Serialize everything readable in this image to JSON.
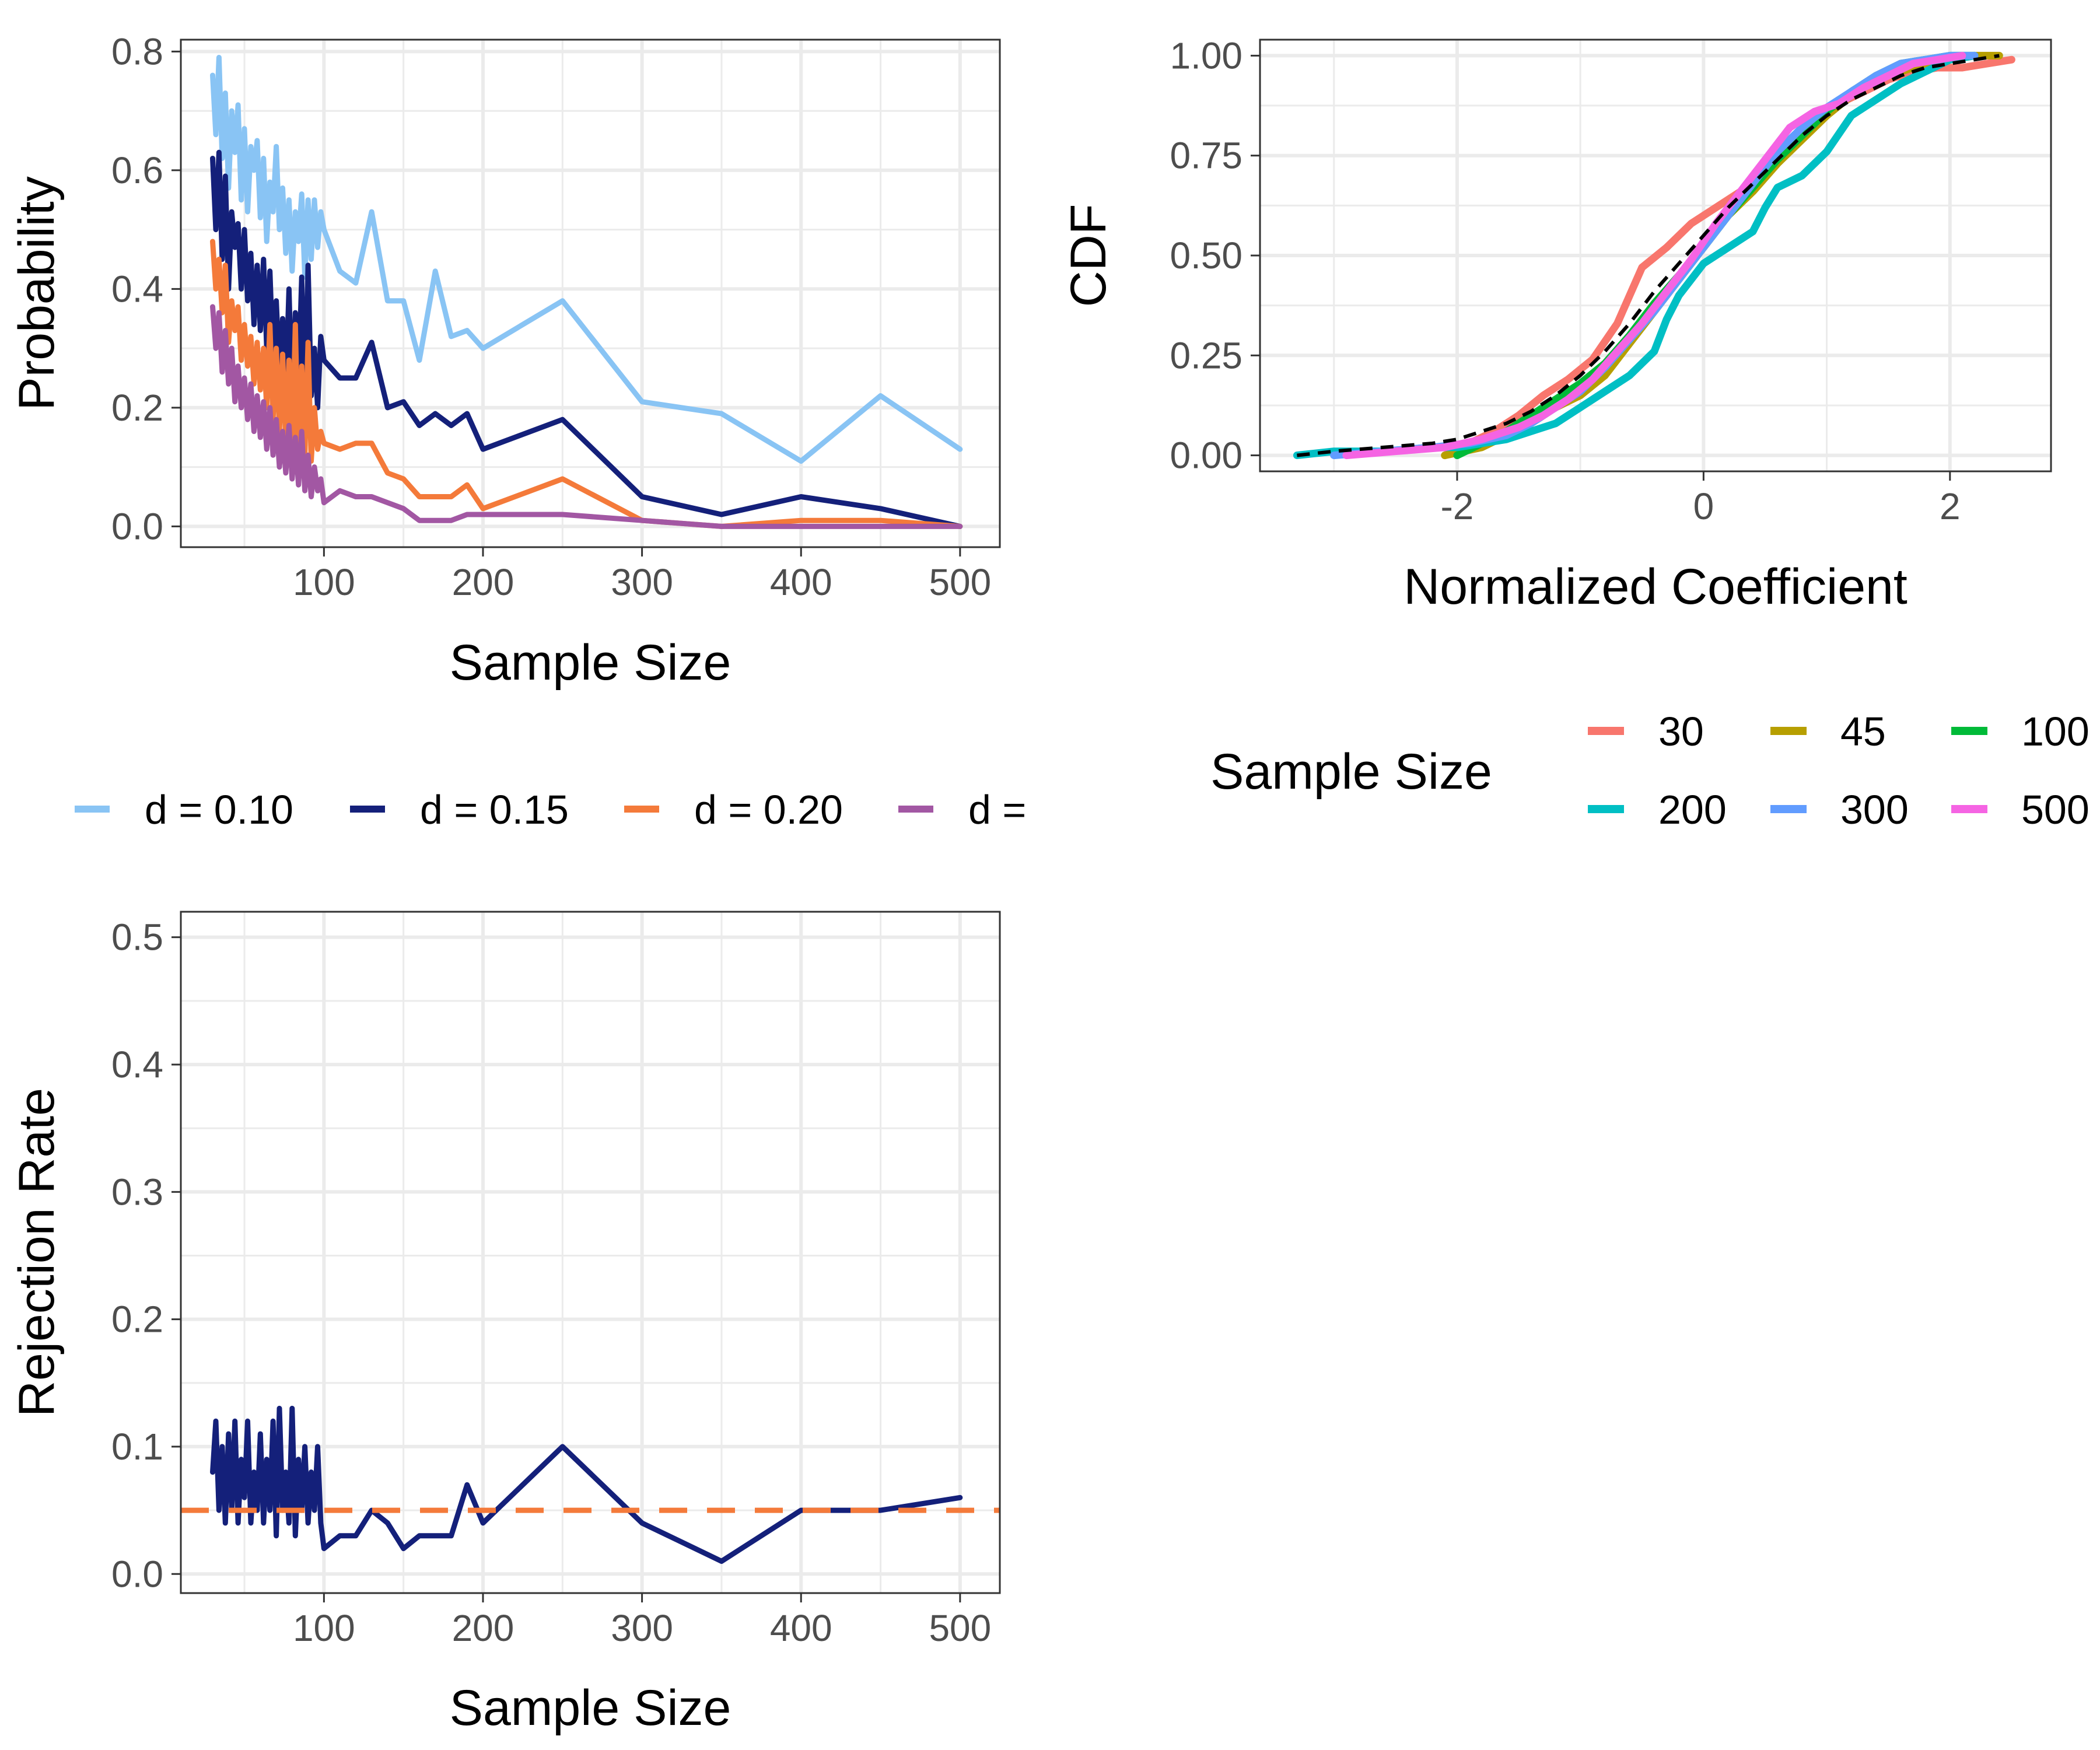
{
  "chart_data": [
    {
      "type": "line",
      "id": "probability",
      "title": "",
      "xlabel": "Sample Size",
      "ylabel": "Probability",
      "xlim": [
        10,
        525
      ],
      "ylim": [
        -0.035,
        0.82
      ],
      "xticks": [
        100,
        200,
        300,
        400,
        500
      ],
      "xtick_labels": [
        "100",
        "200",
        "300",
        "400",
        "500"
      ],
      "yticks": [
        0.0,
        0.2,
        0.4,
        0.6,
        0.8
      ],
      "ytick_labels": [
        "0.0",
        "0.2",
        "0.4",
        "0.6",
        "0.8"
      ],
      "grid": true,
      "legend_placement": "bottom",
      "series": [
        {
          "name": "d = 0.10",
          "color": "#89c4f4",
          "x": [
            30,
            32,
            34,
            36,
            38,
            40,
            42,
            44,
            46,
            48,
            50,
            52,
            54,
            56,
            58,
            60,
            62,
            64,
            66,
            68,
            70,
            72,
            74,
            76,
            78,
            80,
            82,
            84,
            86,
            88,
            90,
            92,
            94,
            96,
            98,
            100,
            110,
            120,
            130,
            140,
            150,
            160,
            170,
            180,
            190,
            200,
            250,
            300,
            350,
            400,
            450,
            500
          ],
          "y": [
            0.76,
            0.66,
            0.79,
            0.62,
            0.73,
            0.57,
            0.7,
            0.63,
            0.71,
            0.55,
            0.67,
            0.53,
            0.64,
            0.6,
            0.65,
            0.52,
            0.62,
            0.48,
            0.58,
            0.53,
            0.64,
            0.5,
            0.57,
            0.46,
            0.55,
            0.43,
            0.53,
            0.48,
            0.56,
            0.42,
            0.55,
            0.45,
            0.55,
            0.47,
            0.53,
            0.5,
            0.43,
            0.41,
            0.53,
            0.38,
            0.38,
            0.28,
            0.43,
            0.32,
            0.33,
            0.3,
            0.38,
            0.21,
            0.19,
            0.11,
            0.22,
            0.13
          ]
        },
        {
          "name": "d = 0.15",
          "color": "#14207a",
          "x": [
            30,
            32,
            34,
            36,
            38,
            40,
            42,
            44,
            46,
            48,
            50,
            52,
            54,
            56,
            58,
            60,
            62,
            64,
            66,
            68,
            70,
            72,
            74,
            76,
            78,
            80,
            82,
            84,
            86,
            88,
            90,
            92,
            94,
            96,
            98,
            100,
            110,
            120,
            130,
            140,
            150,
            160,
            170,
            180,
            190,
            200,
            250,
            300,
            350,
            400,
            450,
            500
          ],
          "y": [
            0.62,
            0.5,
            0.63,
            0.45,
            0.59,
            0.4,
            0.53,
            0.47,
            0.51,
            0.4,
            0.5,
            0.38,
            0.46,
            0.34,
            0.44,
            0.33,
            0.45,
            0.3,
            0.43,
            0.28,
            0.38,
            0.26,
            0.35,
            0.23,
            0.4,
            0.2,
            0.36,
            0.24,
            0.42,
            0.18,
            0.44,
            0.22,
            0.3,
            0.2,
            0.32,
            0.28,
            0.25,
            0.25,
            0.31,
            0.2,
            0.21,
            0.17,
            0.19,
            0.17,
            0.19,
            0.13,
            0.18,
            0.05,
            0.02,
            0.05,
            0.03,
            0.0
          ]
        },
        {
          "name": "d = 0.20",
          "color": "#f47a3a",
          "x": [
            30,
            32,
            34,
            36,
            38,
            40,
            42,
            44,
            46,
            48,
            50,
            52,
            54,
            56,
            58,
            60,
            62,
            64,
            66,
            68,
            70,
            72,
            74,
            76,
            78,
            80,
            82,
            84,
            86,
            88,
            90,
            92,
            94,
            96,
            98,
            100,
            110,
            120,
            130,
            140,
            150,
            160,
            170,
            180,
            190,
            200,
            250,
            300,
            350,
            400,
            450,
            500
          ],
          "y": [
            0.48,
            0.4,
            0.45,
            0.36,
            0.44,
            0.31,
            0.38,
            0.33,
            0.37,
            0.28,
            0.34,
            0.27,
            0.32,
            0.24,
            0.31,
            0.23,
            0.3,
            0.2,
            0.34,
            0.18,
            0.3,
            0.16,
            0.29,
            0.14,
            0.28,
            0.13,
            0.34,
            0.1,
            0.27,
            0.12,
            0.31,
            0.11,
            0.2,
            0.13,
            0.16,
            0.14,
            0.13,
            0.14,
            0.14,
            0.09,
            0.08,
            0.05,
            0.05,
            0.05,
            0.07,
            0.03,
            0.08,
            0.01,
            0.0,
            0.01,
            0.01,
            0.0
          ]
        },
        {
          "name": "d = ",
          "color": "#a257a3",
          "x": [
            30,
            32,
            34,
            36,
            38,
            40,
            42,
            44,
            46,
            48,
            50,
            52,
            54,
            56,
            58,
            60,
            62,
            64,
            66,
            68,
            70,
            72,
            74,
            76,
            78,
            80,
            82,
            84,
            86,
            88,
            90,
            92,
            94,
            96,
            98,
            100,
            110,
            120,
            130,
            140,
            150,
            160,
            170,
            180,
            190,
            200,
            250,
            300,
            350,
            400,
            450,
            500
          ],
          "y": [
            0.37,
            0.3,
            0.36,
            0.26,
            0.33,
            0.24,
            0.3,
            0.21,
            0.27,
            0.2,
            0.25,
            0.18,
            0.24,
            0.16,
            0.22,
            0.15,
            0.21,
            0.13,
            0.2,
            0.12,
            0.18,
            0.1,
            0.16,
            0.09,
            0.17,
            0.08,
            0.15,
            0.07,
            0.16,
            0.06,
            0.12,
            0.05,
            0.1,
            0.06,
            0.08,
            0.04,
            0.06,
            0.05,
            0.05,
            0.04,
            0.03,
            0.01,
            0.01,
            0.01,
            0.02,
            0.02,
            0.02,
            0.01,
            0.0,
            0.0,
            0.0,
            0.0
          ]
        }
      ]
    },
    {
      "type": "line",
      "id": "cdf",
      "title": "",
      "xlabel": "Normalized Coefficient",
      "ylabel": "CDF",
      "xlim": [
        -3.6,
        2.82
      ],
      "ylim": [
        -0.04,
        1.04
      ],
      "xticks": [
        -2,
        0,
        2
      ],
      "xtick_labels": [
        "-2",
        "0",
        "2"
      ],
      "yticks": [
        0.0,
        0.25,
        0.5,
        0.75,
        1.0
      ],
      "ytick_labels": [
        "0.00",
        "0.25",
        "0.50",
        "0.75",
        "1.00"
      ],
      "grid": true,
      "legend_placement": "bottom",
      "legend_title": "Sample Size",
      "reference_line": {
        "label": "",
        "style": "dashed",
        "color": "#000000",
        "x": [
          -3.3,
          -3.0,
          -2.6,
          -2.2,
          -2.0,
          -1.8,
          -1.6,
          -1.4,
          -1.2,
          -1.0,
          -0.8,
          -0.6,
          -0.4,
          -0.2,
          0.0,
          0.2,
          0.4,
          0.6,
          0.8,
          1.0,
          1.2,
          1.4,
          1.6,
          1.8,
          2.0,
          2.2,
          2.4
        ],
        "y": [
          0.0,
          0.01,
          0.02,
          0.03,
          0.04,
          0.06,
          0.08,
          0.11,
          0.15,
          0.2,
          0.26,
          0.33,
          0.41,
          0.48,
          0.55,
          0.62,
          0.68,
          0.74,
          0.8,
          0.85,
          0.89,
          0.92,
          0.95,
          0.97,
          0.98,
          0.99,
          1.0
        ]
      },
      "series": [
        {
          "name": "30",
          "color": "#f8766d",
          "x": [
            -2.1,
            -1.9,
            -1.7,
            -1.5,
            -1.3,
            -1.1,
            -0.9,
            -0.7,
            -0.5,
            -0.3,
            -0.1,
            0.1,
            0.3,
            0.5,
            0.7,
            0.9,
            1.1,
            1.3,
            1.5,
            1.7,
            1.9,
            2.1,
            2.3,
            2.5
          ],
          "y": [
            0.0,
            0.03,
            0.06,
            0.1,
            0.15,
            0.19,
            0.24,
            0.33,
            0.47,
            0.52,
            0.58,
            0.62,
            0.66,
            0.72,
            0.79,
            0.84,
            0.88,
            0.91,
            0.94,
            0.96,
            0.97,
            0.97,
            0.98,
            0.99
          ]
        },
        {
          "name": "45",
          "color": "#b79f00",
          "x": [
            -2.1,
            -1.8,
            -1.6,
            -1.4,
            -1.2,
            -1.0,
            -0.8,
            -0.6,
            -0.4,
            -0.2,
            0.0,
            0.2,
            0.4,
            0.6,
            0.8,
            1.0,
            1.2,
            1.4,
            1.6,
            1.8,
            2.0,
            2.2,
            2.4
          ],
          "y": [
            0.0,
            0.02,
            0.05,
            0.08,
            0.12,
            0.15,
            0.2,
            0.28,
            0.36,
            0.44,
            0.52,
            0.6,
            0.66,
            0.73,
            0.79,
            0.85,
            0.9,
            0.94,
            0.96,
            0.98,
            0.99,
            1.0,
            1.0
          ]
        },
        {
          "name": "100",
          "color": "#00ba38",
          "x": [
            -2.0,
            -1.8,
            -1.6,
            -1.4,
            -1.2,
            -1.0,
            -0.8,
            -0.6,
            -0.4,
            -0.2,
            0.0,
            0.2,
            0.4,
            0.6,
            0.8,
            1.0,
            1.2,
            1.4,
            1.6,
            1.8,
            2.0,
            2.2
          ],
          "y": [
            0.0,
            0.03,
            0.06,
            0.1,
            0.14,
            0.18,
            0.23,
            0.3,
            0.38,
            0.45,
            0.52,
            0.6,
            0.67,
            0.74,
            0.8,
            0.86,
            0.91,
            0.95,
            0.98,
            0.99,
            1.0,
            1.0
          ]
        },
        {
          "name": "200",
          "color": "#00bfc4",
          "x": [
            -3.3,
            -3.0,
            -2.6,
            -2.2,
            -2.0,
            -1.6,
            -1.4,
            -1.2,
            -1.0,
            -0.8,
            -0.6,
            -0.4,
            -0.3,
            -0.2,
            0.0,
            0.2,
            0.4,
            0.5,
            0.6,
            0.8,
            1.0,
            1.2,
            1.4,
            1.6,
            1.8,
            2.0,
            2.2
          ],
          "y": [
            0.0,
            0.01,
            0.01,
            0.02,
            0.02,
            0.04,
            0.06,
            0.08,
            0.12,
            0.16,
            0.2,
            0.26,
            0.34,
            0.4,
            0.48,
            0.52,
            0.56,
            0.62,
            0.67,
            0.7,
            0.76,
            0.85,
            0.89,
            0.93,
            0.96,
            0.99,
            1.0
          ]
        },
        {
          "name": "300",
          "color": "#619cff",
          "x": [
            -3.0,
            -2.6,
            -2.2,
            -1.9,
            -1.6,
            -1.4,
            -1.2,
            -1.0,
            -0.8,
            -0.6,
            -0.4,
            -0.2,
            0.0,
            0.2,
            0.4,
            0.6,
            0.8,
            1.0,
            1.2,
            1.4,
            1.6,
            1.8,
            2.0,
            2.2
          ],
          "y": [
            0.0,
            0.01,
            0.02,
            0.03,
            0.05,
            0.08,
            0.12,
            0.16,
            0.22,
            0.29,
            0.36,
            0.44,
            0.52,
            0.6,
            0.68,
            0.76,
            0.82,
            0.87,
            0.91,
            0.95,
            0.98,
            0.99,
            1.0,
            1.0
          ]
        },
        {
          "name": "500",
          "color": "#f564e3",
          "x": [
            -2.9,
            -2.5,
            -2.1,
            -1.8,
            -1.5,
            -1.3,
            -1.1,
            -0.9,
            -0.7,
            -0.5,
            -0.3,
            -0.1,
            0.1,
            0.3,
            0.5,
            0.7,
            0.9,
            1.1,
            1.3,
            1.5,
            1.7,
            1.9,
            2.1
          ],
          "y": [
            0.0,
            0.01,
            0.02,
            0.04,
            0.07,
            0.1,
            0.14,
            0.19,
            0.26,
            0.33,
            0.41,
            0.49,
            0.58,
            0.66,
            0.74,
            0.82,
            0.86,
            0.88,
            0.92,
            0.95,
            0.98,
            0.99,
            1.0
          ]
        }
      ]
    },
    {
      "type": "line",
      "id": "rejection",
      "title": "",
      "xlabel": "Sample Size",
      "ylabel": "Rejection Rate",
      "xlim": [
        10,
        525
      ],
      "ylim": [
        -0.015,
        0.52
      ],
      "xticks": [
        100,
        200,
        300,
        400,
        500
      ],
      "xtick_labels": [
        "100",
        "200",
        "300",
        "400",
        "500"
      ],
      "yticks": [
        0.0,
        0.1,
        0.2,
        0.3,
        0.4,
        0.5
      ],
      "ytick_labels": [
        "0.0",
        "0.1",
        "0.2",
        "0.3",
        "0.4",
        "0.5"
      ],
      "grid": true,
      "reference_line": {
        "label": "",
        "style": "dashed",
        "color": "#f47a3a",
        "y": 0.05
      },
      "series": [
        {
          "name": "",
          "color": "#14207a",
          "x": [
            30,
            32,
            34,
            36,
            38,
            40,
            42,
            44,
            46,
            48,
            50,
            52,
            54,
            56,
            58,
            60,
            62,
            64,
            66,
            68,
            70,
            72,
            74,
            76,
            78,
            80,
            82,
            84,
            86,
            88,
            90,
            92,
            94,
            96,
            98,
            100,
            110,
            120,
            130,
            140,
            150,
            160,
            170,
            180,
            190,
            200,
            250,
            300,
            350,
            400,
            450,
            500
          ],
          "y": [
            0.08,
            0.12,
            0.05,
            0.1,
            0.04,
            0.11,
            0.05,
            0.12,
            0.04,
            0.09,
            0.06,
            0.12,
            0.04,
            0.08,
            0.05,
            0.11,
            0.04,
            0.09,
            0.05,
            0.12,
            0.03,
            0.13,
            0.05,
            0.08,
            0.04,
            0.13,
            0.03,
            0.09,
            0.05,
            0.1,
            0.04,
            0.08,
            0.05,
            0.1,
            0.04,
            0.02,
            0.03,
            0.03,
            0.05,
            0.04,
            0.02,
            0.03,
            0.03,
            0.03,
            0.07,
            0.04,
            0.1,
            0.04,
            0.01,
            0.05,
            0.05,
            0.06
          ]
        }
      ]
    }
  ],
  "legends": {
    "probability": {
      "title": "",
      "items": [
        "d = 0.10",
        "d = 0.15",
        "d = 0.20",
        "d = "
      ]
    },
    "cdf": {
      "title": "Sample Size",
      "items": [
        "30",
        "45",
        "100",
        "200",
        "300",
        "500"
      ]
    }
  }
}
